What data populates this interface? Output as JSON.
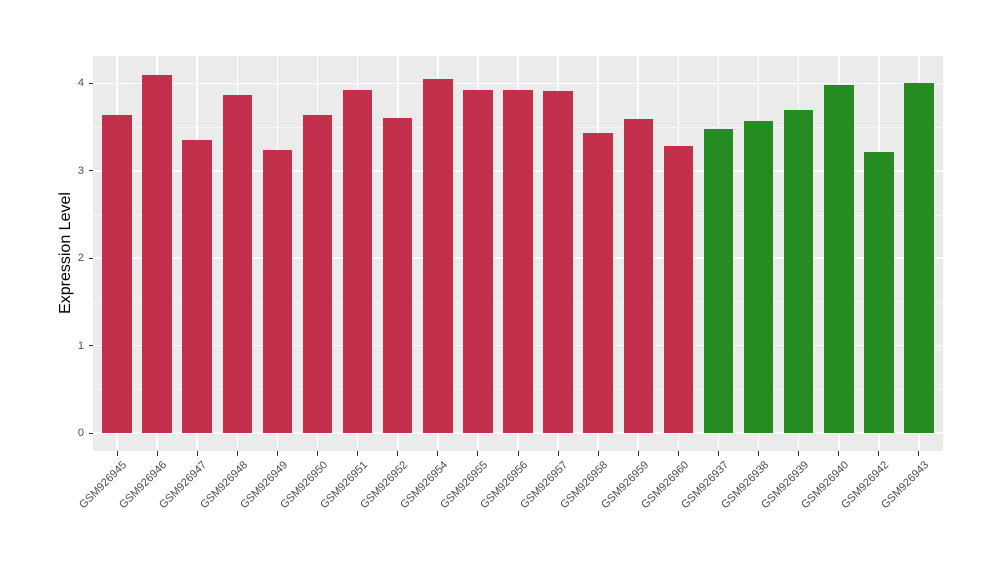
{
  "chart_data": {
    "type": "bar",
    "title": "",
    "xlabel": "",
    "ylabel": "Expression Level",
    "ylim": [
      0,
      4.3
    ],
    "yticks": [
      0,
      1,
      2,
      3,
      4
    ],
    "y_minor_ticks": [
      0.5,
      1.5,
      2.5,
      3.5
    ],
    "grid": "white major and minor horizontal lines plus vertical line at each category center, on gray panel",
    "legend_position": "none",
    "panel_bg": "#EBEBEB",
    "grid_major_color": "#FFFFFF",
    "grid_minor_color": "#F6F6F6",
    "axis_text_color": "#4D4D4D",
    "group_colors": {
      "red": "#C2304B",
      "green": "#268C21"
    },
    "bars": [
      {
        "label": "GSM926945",
        "value": 3.64,
        "group": "red"
      },
      {
        "label": "GSM926946",
        "value": 4.1,
        "group": "red"
      },
      {
        "label": "GSM926947",
        "value": 3.35,
        "group": "red"
      },
      {
        "label": "GSM926948",
        "value": 3.87,
        "group": "red"
      },
      {
        "label": "GSM926949",
        "value": 3.24,
        "group": "red"
      },
      {
        "label": "GSM926950",
        "value": 3.64,
        "group": "red"
      },
      {
        "label": "GSM926951",
        "value": 3.92,
        "group": "red"
      },
      {
        "label": "GSM926952",
        "value": 3.6,
        "group": "red"
      },
      {
        "label": "GSM926954",
        "value": 4.05,
        "group": "red"
      },
      {
        "label": "GSM926955",
        "value": 3.92,
        "group": "red"
      },
      {
        "label": "GSM926956",
        "value": 3.92,
        "group": "red"
      },
      {
        "label": "GSM926957",
        "value": 3.91,
        "group": "red"
      },
      {
        "label": "GSM926958",
        "value": 3.43,
        "group": "red"
      },
      {
        "label": "GSM926959",
        "value": 3.59,
        "group": "red"
      },
      {
        "label": "GSM926960",
        "value": 3.28,
        "group": "red"
      },
      {
        "label": "GSM926937",
        "value": 3.48,
        "group": "green"
      },
      {
        "label": "GSM926938",
        "value": 3.57,
        "group": "green"
      },
      {
        "label": "GSM926939",
        "value": 3.7,
        "group": "green"
      },
      {
        "label": "GSM926940",
        "value": 3.98,
        "group": "green"
      },
      {
        "label": "GSM926942",
        "value": 3.21,
        "group": "green"
      },
      {
        "label": "GSM926943",
        "value": 4.0,
        "group": "green"
      }
    ]
  }
}
